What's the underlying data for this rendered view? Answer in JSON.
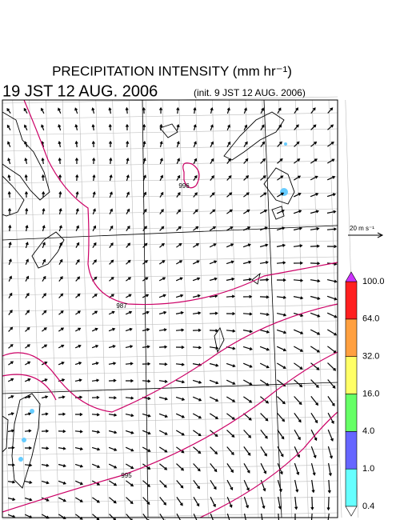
{
  "header": {
    "title": "PRECIPITATION INTENSITY (mm hr⁻¹)",
    "valid_time": "19 JST 12 AUG. 2006",
    "init_time": "(init. 9 JST 12 AUG. 2006)"
  },
  "vector_key": {
    "label": "20 m s⁻¹"
  },
  "contours": [
    {
      "label": "996"
    },
    {
      "label": "987"
    },
    {
      "label": "995"
    }
  ],
  "colorbar": {
    "over_color": "#cc33ff",
    "under_color": "#ffffff",
    "bins": [
      {
        "color": "#66ffff"
      },
      {
        "color": "#6666ff"
      },
      {
        "color": "#66ff66"
      },
      {
        "color": "#ffff66"
      },
      {
        "color": "#ffa040"
      },
      {
        "color": "#ff2020"
      }
    ],
    "labels": [
      "0.4",
      "1.0",
      "4.0",
      "16.0",
      "32.0",
      "64.0",
      "100.0"
    ]
  }
}
